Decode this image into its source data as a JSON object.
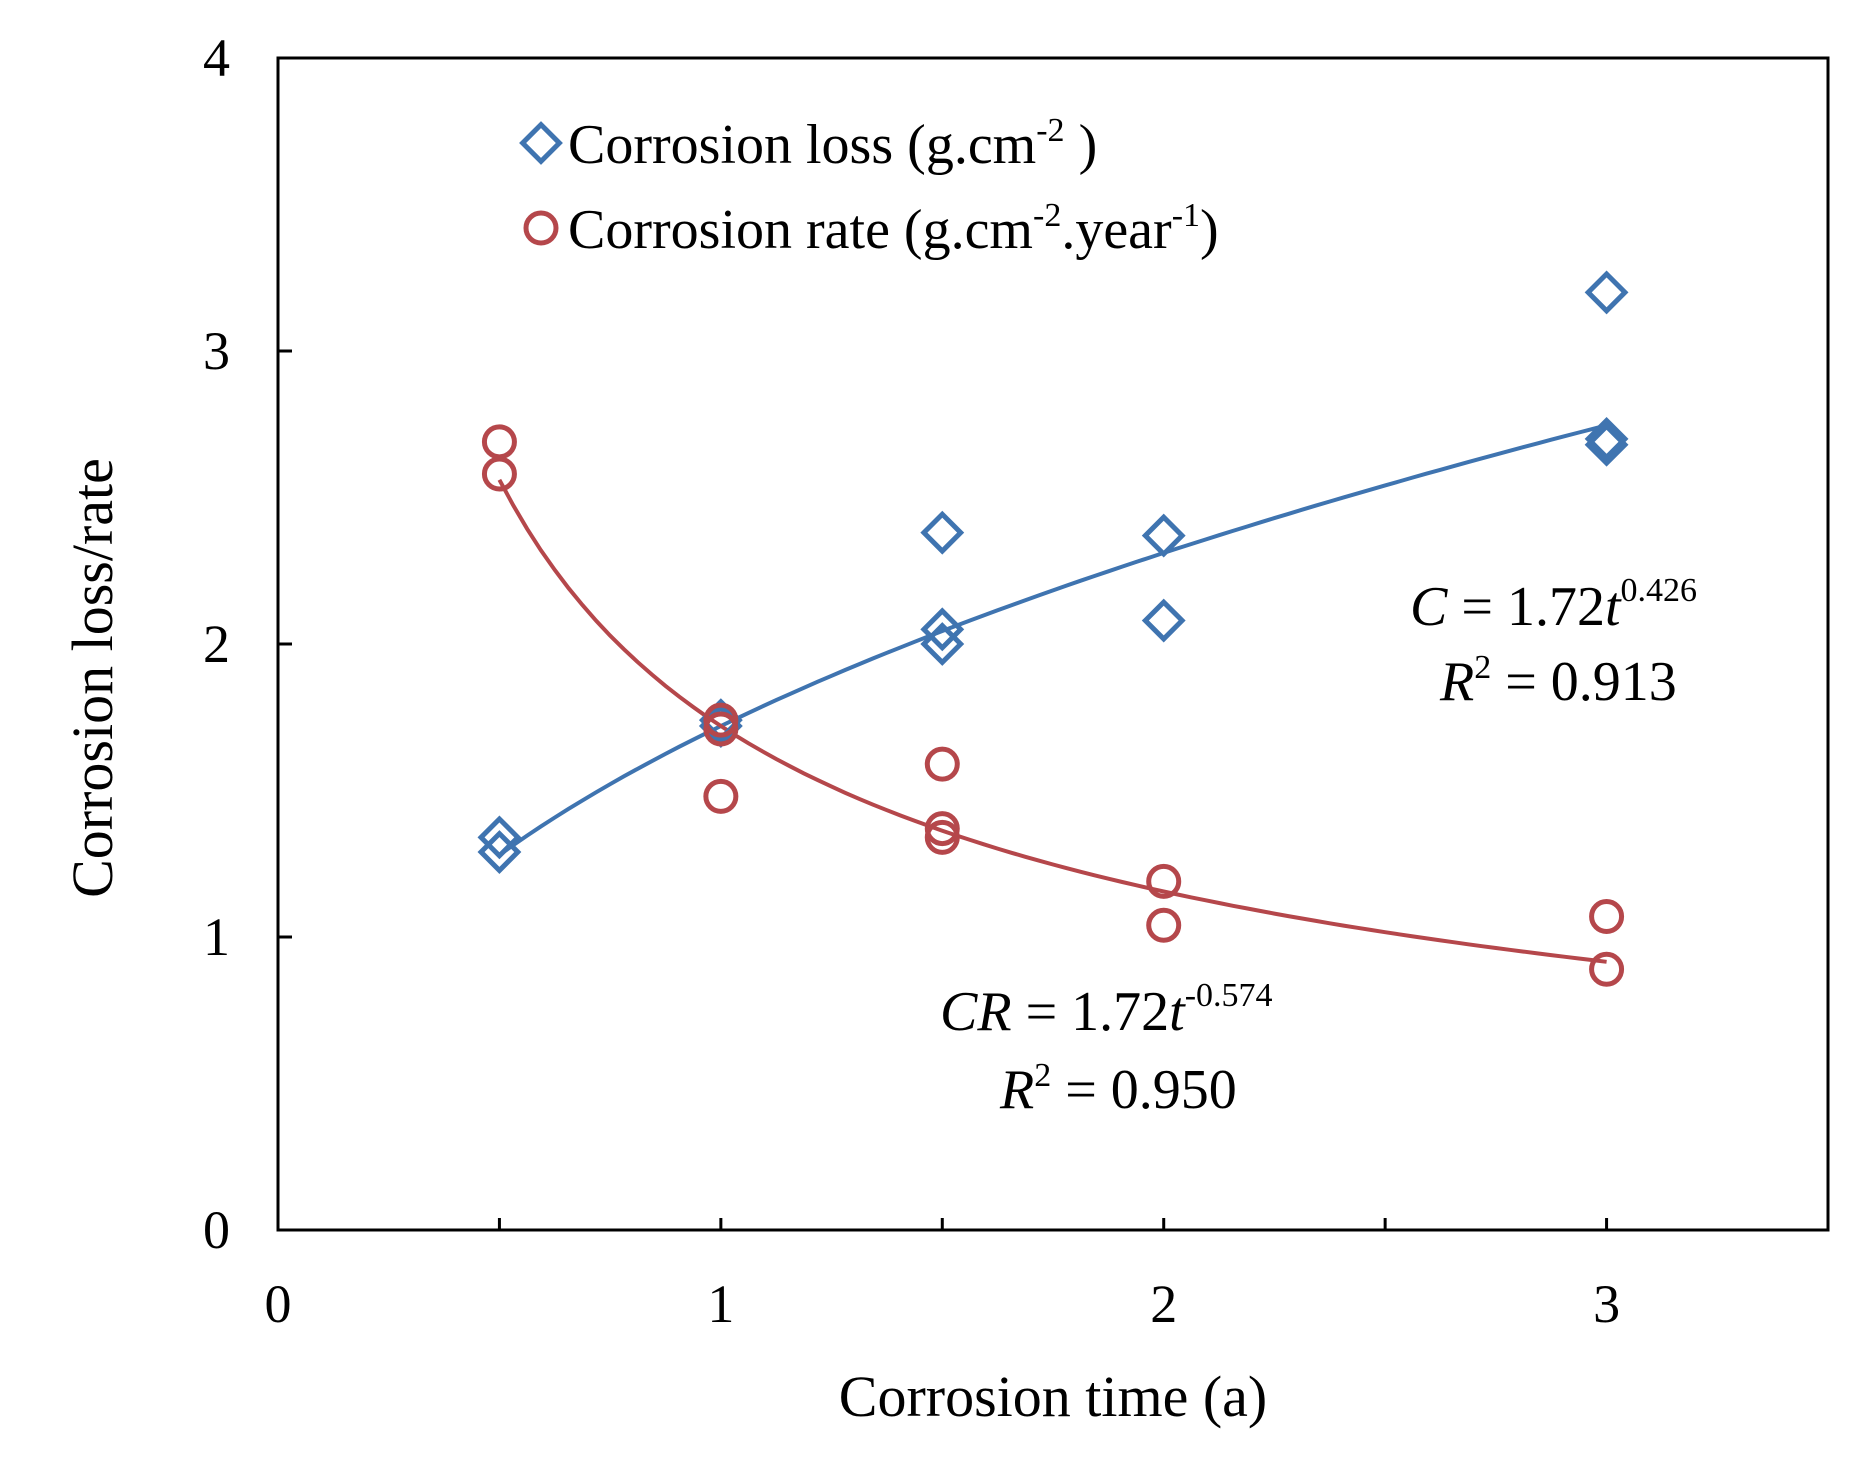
{
  "chart_data": {
    "type": "scatter",
    "title": "",
    "xlabel": "Corrosion time (a)",
    "ylabel": "Corrosion loss/rate",
    "xlim": [
      0,
      3.5
    ],
    "ylim": [
      0,
      4
    ],
    "xticks": [
      0,
      1,
      2,
      3
    ],
    "xticks_minor": [
      0.5,
      1.5,
      2.5
    ],
    "yticks": [
      0,
      1,
      2,
      3,
      4
    ],
    "grid": false,
    "legend_position": "top-left",
    "series": [
      {
        "name": "Corrosion loss",
        "unit": "g.cm",
        "unit_sup": "-2",
        "unit_close": " )",
        "marker": "diamond",
        "color": "#3f74b0",
        "points": [
          {
            "x": 0.5,
            "y": 1.34
          },
          {
            "x": 0.5,
            "y": 1.29
          },
          {
            "x": 1.0,
            "y": 1.74
          },
          {
            "x": 1.0,
            "y": 1.72
          },
          {
            "x": 1.5,
            "y": 2.38
          },
          {
            "x": 1.5,
            "y": 2.05
          },
          {
            "x": 1.5,
            "y": 2.0
          },
          {
            "x": 2.0,
            "y": 2.37
          },
          {
            "x": 2.0,
            "y": 2.08
          },
          {
            "x": 3.0,
            "y": 3.2
          },
          {
            "x": 3.0,
            "y": 2.7
          },
          {
            "x": 3.0,
            "y": 2.68
          }
        ],
        "fit": {
          "coef": 1.72,
          "exponent": 0.426,
          "x_from": 0.5,
          "x_to": 3.0,
          "eq_lhs": "C",
          "eq_mid": " = 1.72",
          "eq_t": "t",
          "eq_exp": "0.426",
          "r2_lhs": "R",
          "r2_sup": "2",
          "r2_rest": " = 0.913"
        }
      },
      {
        "name": "Corrosion rate",
        "unit": "g.cm",
        "unit_sup": "-2",
        "unit_mid": ".year",
        "unit_sup2": "-1",
        "unit_close": ")",
        "marker": "circle",
        "color": "#b5474b",
        "points": [
          {
            "x": 0.5,
            "y": 2.69
          },
          {
            "x": 0.5,
            "y": 2.58
          },
          {
            "x": 1.0,
            "y": 1.74
          },
          {
            "x": 1.0,
            "y": 1.71
          },
          {
            "x": 1.0,
            "y": 1.48
          },
          {
            "x": 1.5,
            "y": 1.59
          },
          {
            "x": 1.5,
            "y": 1.37
          },
          {
            "x": 1.5,
            "y": 1.34
          },
          {
            "x": 2.0,
            "y": 1.19
          },
          {
            "x": 2.0,
            "y": 1.04
          },
          {
            "x": 3.0,
            "y": 1.07
          },
          {
            "x": 3.0,
            "y": 0.89
          }
        ],
        "fit": {
          "coef": 1.72,
          "exponent": -0.574,
          "x_from": 0.5,
          "x_to": 3.0,
          "eq_lhs": "CR",
          "eq_mid": " = 1.72",
          "eq_t": "t",
          "eq_exp": "-0.574",
          "r2_lhs": "R",
          "r2_sup": "2",
          "r2_rest": " = 0.950"
        }
      }
    ]
  }
}
